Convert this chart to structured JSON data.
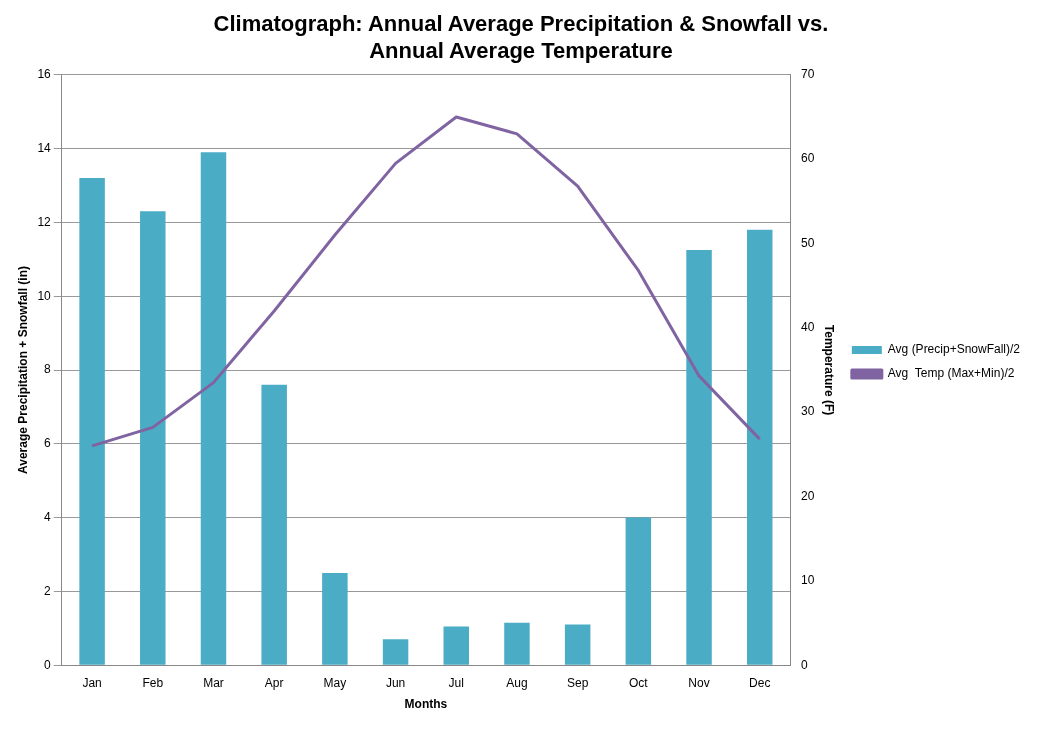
{
  "chart_data": {
    "type": "bar",
    "title": "Climatograph: Annual Average Precipitation & Snowfall vs. Annual Average Temperature",
    "xlabel": "Months",
    "ylabel": "Average Precipitation + Snowfall (in)",
    "y2label": "Temperature (F)",
    "categories": [
      "Jan",
      "Feb",
      "Mar",
      "Apr",
      "May",
      "Jun",
      "Jul",
      "Aug",
      "Sep",
      "Oct",
      "Nov",
      "Dec"
    ],
    "series": [
      {
        "name": "Avg (Precip+SnowFall)/2",
        "type": "bar",
        "color": "#4bacc6",
        "values": [
          13.2,
          12.3,
          13.9,
          7.6,
          2.5,
          0.7,
          1.05,
          1.15,
          1.1,
          4.0,
          11.25,
          11.8
        ]
      },
      {
        "name": "Avg  Temp (Max+Min)/2",
        "type": "line",
        "axis": "y2",
        "color": "#8064a2",
        "values": [
          26,
          28.2,
          33.5,
          42,
          51,
          59.5,
          65,
          63,
          56.8,
          46.8,
          34.3,
          26.8
        ]
      }
    ],
    "ylim": [
      0,
      16
    ],
    "yticks": [
      0,
      2,
      4,
      6,
      8,
      10,
      12,
      14,
      16
    ],
    "y2lim": [
      0,
      70
    ],
    "y2ticks": [
      0,
      10,
      20,
      30,
      40,
      50,
      60,
      70
    ],
    "grid": "y",
    "legend": "right",
    "marker": "none"
  }
}
